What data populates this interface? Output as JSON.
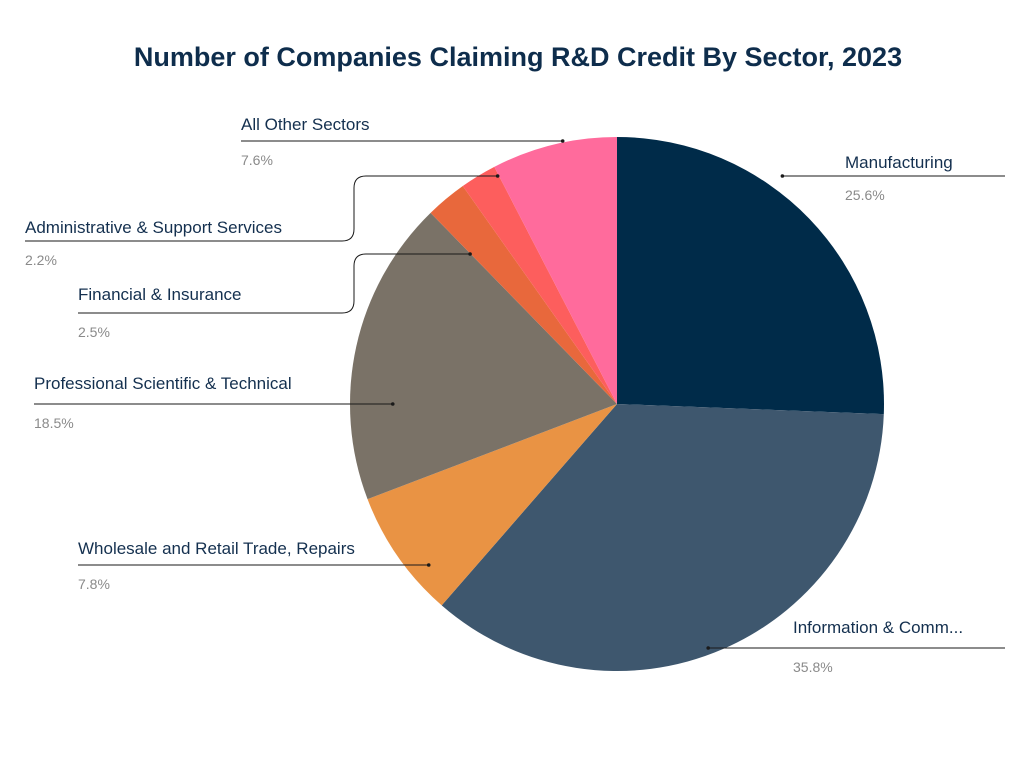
{
  "chart_data": {
    "type": "pie",
    "title": "Number of Companies Claiming R&D Credit By Sector, 2023",
    "slices": [
      {
        "label": "Manufacturing",
        "value": 25.6,
        "display": "25.6%",
        "color": "#002b49"
      },
      {
        "label": "Information & Comm...",
        "value": 35.8,
        "display": "35.8%",
        "color": "#3e576e"
      },
      {
        "label": "Wholesale and Retail Trade, Repairs",
        "value": 7.8,
        "display": "7.8%",
        "color": "#e99344"
      },
      {
        "label": "Professional Scientific & Technical",
        "value": 18.5,
        "display": "18.5%",
        "color": "#7a7267"
      },
      {
        "label": "Financial & Insurance",
        "value": 2.5,
        "display": "2.5%",
        "color": "#e8683c"
      },
      {
        "label": "Administrative & Support Services",
        "value": 2.2,
        "display": "2.2%",
        "color": "#fd5e5d"
      },
      {
        "label": "All Other Sectors",
        "value": 7.6,
        "display": "7.6%",
        "color": "#ff6b9c"
      }
    ]
  }
}
